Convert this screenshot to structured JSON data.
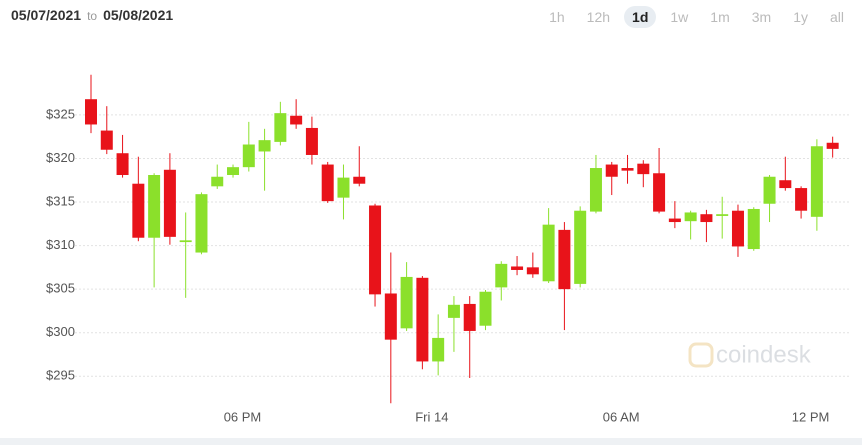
{
  "header": {
    "start_date": "05/07/2021",
    "separator": "to",
    "end_date": "05/08/2021",
    "timeframes": [
      "1h",
      "12h",
      "1d",
      "1w",
      "1m",
      "3m",
      "1y",
      "all"
    ],
    "selected": "1d"
  },
  "chart_data": {
    "type": "candlestick",
    "watermark": "coindesk",
    "up_color": "#8be02b",
    "down_color": "#e8131a",
    "open": [
      326.8,
      323.2,
      320.6,
      317.1,
      310.9,
      318.7,
      310.4,
      309.2,
      316.8,
      318.1,
      319.0,
      320.8,
      321.9,
      324.9,
      323.5,
      319.3,
      315.5,
      317.9,
      314.6,
      304.5,
      300.5,
      306.3,
      296.7,
      301.7,
      303.3,
      300.8,
      305.2,
      307.6,
      307.5,
      305.9,
      311.8,
      305.6,
      313.9,
      319.3,
      318.9,
      319.4,
      318.3,
      313.1,
      312.8,
      313.6,
      313.4,
      314.0,
      309.6,
      314.8,
      317.5,
      316.6,
      313.3,
      321.8
    ],
    "high": [
      329.6,
      326.0,
      322.7,
      320.2,
      318.3,
      320.6,
      313.8,
      316.1,
      319.3,
      319.3,
      324.2,
      323.4,
      326.5,
      326.8,
      324.8,
      319.6,
      319.3,
      321.4,
      314.8,
      309.2,
      308.1,
      306.5,
      302.1,
      304.2,
      304.2,
      304.9,
      308.2,
      308.8,
      309.2,
      314.3,
      312.7,
      314.5,
      320.4,
      319.6,
      320.4,
      319.8,
      321.2,
      315.1,
      314.0,
      314.1,
      315.6,
      314.7,
      314.4,
      318.1,
      320.2,
      316.8,
      322.2,
      322.5
    ],
    "low": [
      322.9,
      320.5,
      317.8,
      310.5,
      305.2,
      310.1,
      304.0,
      309.0,
      316.5,
      317.8,
      318.5,
      316.3,
      321.5,
      323.4,
      319.3,
      314.9,
      313.0,
      316.8,
      303.0,
      291.9,
      300.2,
      295.8,
      295.1,
      297.8,
      294.8,
      300.3,
      303.7,
      306.6,
      306.3,
      305.7,
      300.3,
      305.2,
      313.7,
      315.8,
      317.1,
      316.7,
      313.7,
      312.0,
      310.7,
      310.4,
      310.8,
      308.7,
      309.4,
      312.7,
      316.3,
      313.1,
      311.7,
      320.1
    ],
    "close": [
      323.9,
      321.0,
      318.1,
      310.9,
      318.1,
      311.0,
      310.6,
      315.9,
      317.9,
      319.0,
      321.6,
      322.1,
      325.2,
      323.9,
      320.4,
      315.1,
      317.8,
      317.1,
      304.4,
      299.2,
      306.4,
      296.7,
      299.4,
      303.2,
      300.2,
      304.7,
      307.9,
      307.2,
      306.7,
      312.4,
      305.0,
      314.0,
      318.9,
      317.9,
      318.6,
      318.2,
      313.9,
      312.7,
      313.8,
      312.7,
      313.6,
      309.9,
      314.2,
      317.9,
      316.6,
      314.0,
      321.4,
      321.1
    ],
    "ylim": [
      291.7,
      331.3
    ],
    "yticks": [
      {
        "value": 295,
        "label": "$295"
      },
      {
        "value": 300,
        "label": "$300"
      },
      {
        "value": 305,
        "label": "$305"
      },
      {
        "value": 310,
        "label": "$310"
      },
      {
        "value": 315,
        "label": "$315"
      },
      {
        "value": 320,
        "label": "$320"
      },
      {
        "value": 325,
        "label": "$325"
      }
    ],
    "xticks": [
      {
        "value": 9.6,
        "label": "06 PM"
      },
      {
        "value": 21.6,
        "label": "Fri 14"
      },
      {
        "value": 33.6,
        "label": "06 AM"
      },
      {
        "value": 45.6,
        "label": "12 PM"
      }
    ],
    "grid": true
  }
}
